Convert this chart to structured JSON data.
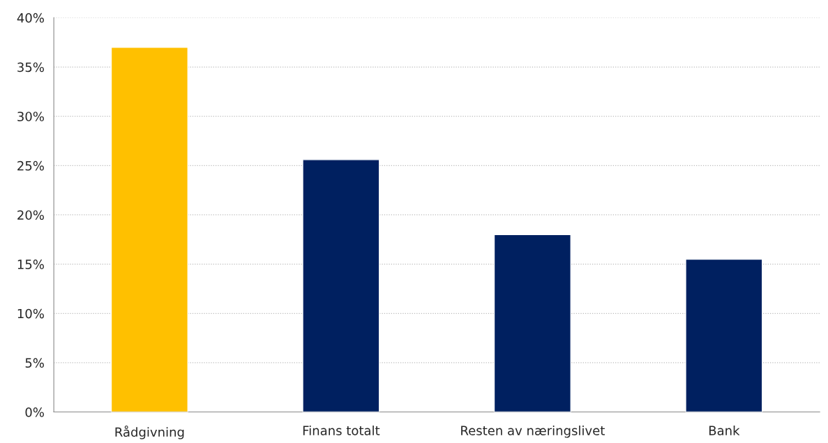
{
  "chart_data": {
    "type": "bar",
    "categories": [
      "Rådgivning",
      "Finans totalt",
      "Resten av næringslivet",
      "Bank"
    ],
    "values": [
      37.0,
      25.6,
      18.0,
      15.5
    ],
    "colors": [
      "#ffc000",
      "#002060",
      "#002060",
      "#002060"
    ],
    "ylim": [
      0,
      40
    ],
    "yticks": [
      {
        "value": 0,
        "label": "0%"
      },
      {
        "value": 5,
        "label": "5%"
      },
      {
        "value": 10,
        "label": "10%"
      },
      {
        "value": 15,
        "label": "15%"
      },
      {
        "value": 20,
        "label": "20%"
      },
      {
        "value": 25,
        "label": "25%"
      },
      {
        "value": 30,
        "label": "30%"
      },
      {
        "value": 35,
        "label": "35%"
      },
      {
        "value": 40,
        "label": "40%"
      }
    ],
    "grid": "y"
  }
}
